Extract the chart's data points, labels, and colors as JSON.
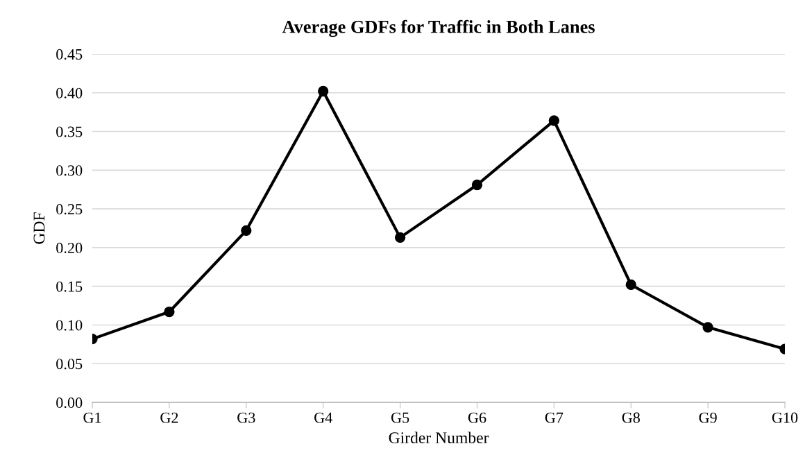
{
  "chart_data": {
    "type": "line",
    "title": "Average GDFs for Traffic in Both Lanes",
    "xlabel": "Girder Number",
    "ylabel": "GDF",
    "categories": [
      "G1",
      "G2",
      "G3",
      "G4",
      "G5",
      "G6",
      "G7",
      "G8",
      "G9",
      "G10"
    ],
    "series": [
      {
        "color": "#000000",
        "values": [
          0.082,
          0.117,
          0.222,
          0.402,
          0.213,
          0.281,
          0.364,
          0.152,
          0.097,
          0.069
        ]
      }
    ],
    "ylim": [
      0,
      0.45
    ],
    "yticks": [
      {
        "value": 0,
        "label": "0.00"
      },
      {
        "value": 0.05,
        "label": "0.05"
      },
      {
        "value": 0.1,
        "label": "0.10"
      },
      {
        "value": 0.15,
        "label": "0.15"
      },
      {
        "value": 0.2,
        "label": "0.20"
      },
      {
        "value": 0.25,
        "label": "0.25"
      },
      {
        "value": 0.3,
        "label": "0.30"
      },
      {
        "value": 0.35,
        "label": "0.35"
      },
      {
        "value": 0.4,
        "label": "0.40"
      },
      {
        "value": 0.45,
        "label": "0.45"
      }
    ],
    "grid": "y",
    "marker": "circle",
    "line_style": "solid"
  }
}
